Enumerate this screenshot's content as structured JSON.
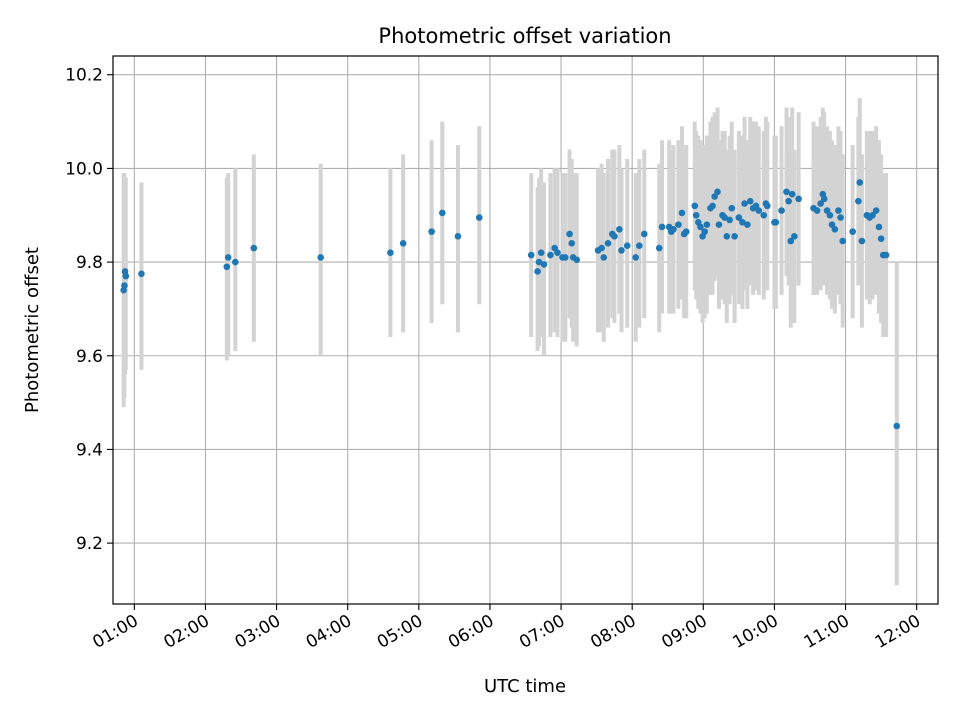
{
  "chart_data": {
    "type": "scatter",
    "title": "Photometric offset variation",
    "xlabel": "UTC time",
    "ylabel": "Photometric offset",
    "x_tick_labels": [
      "01:00",
      "02:00",
      "03:00",
      "04:00",
      "05:00",
      "06:00",
      "07:00",
      "08:00",
      "09:00",
      "10:00",
      "11:00",
      "12:00"
    ],
    "x_ticks_hours": [
      1,
      2,
      3,
      4,
      5,
      6,
      7,
      8,
      9,
      10,
      11,
      12
    ],
    "y_ticks": [
      9.2,
      9.4,
      9.6,
      9.8,
      10.0,
      10.2
    ],
    "y_tick_labels": [
      "9.2",
      "9.4",
      "9.6",
      "9.8",
      "10.0",
      "10.2"
    ],
    "xlim_hours": [
      0.7,
      12.3
    ],
    "ylim": [
      9.07,
      10.24
    ],
    "grid": true,
    "marker_color": "#1f77b4",
    "errorbar_color": "#d3d3d3",
    "series": [
      {
        "values": [
          [
            0.85,
            9.74,
            9.99,
            9.49
          ],
          [
            0.86,
            9.75,
            9.99,
            9.51
          ],
          [
            0.87,
            9.78,
            9.98,
            9.56
          ],
          [
            0.88,
            9.77,
            9.98,
            9.57
          ],
          [
            1.1,
            9.775,
            9.97,
            9.57
          ],
          [
            2.3,
            9.79,
            9.98,
            9.59
          ],
          [
            2.32,
            9.81,
            9.99,
            9.6
          ],
          [
            2.42,
            9.8,
            10.0,
            9.61
          ],
          [
            2.68,
            9.83,
            10.03,
            9.63
          ],
          [
            3.62,
            9.81,
            10.01,
            9.6
          ],
          [
            4.6,
            9.82,
            10.0,
            9.64
          ],
          [
            4.78,
            9.84,
            10.03,
            9.65
          ],
          [
            5.18,
            9.865,
            10.06,
            9.67
          ],
          [
            5.33,
            9.905,
            10.1,
            9.71
          ],
          [
            5.55,
            9.855,
            10.05,
            9.65
          ],
          [
            5.85,
            9.895,
            10.09,
            9.71
          ],
          [
            6.58,
            9.815,
            9.99,
            9.64
          ],
          [
            6.67,
            9.78,
            9.96,
            9.61
          ],
          [
            6.69,
            9.8,
            9.98,
            9.62
          ],
          [
            6.72,
            9.82,
            10.0,
            9.64
          ],
          [
            6.76,
            9.795,
            9.97,
            9.6
          ],
          [
            6.85,
            9.815,
            9.99,
            9.64
          ],
          [
            6.91,
            9.83,
            10.0,
            9.65
          ],
          [
            6.95,
            9.82,
            10.0,
            9.64
          ],
          [
            7.02,
            9.81,
            9.99,
            9.63
          ],
          [
            7.06,
            9.81,
            9.99,
            9.63
          ],
          [
            7.12,
            9.86,
            10.04,
            9.68
          ],
          [
            7.15,
            9.84,
            10.02,
            9.66
          ],
          [
            7.17,
            9.81,
            9.99,
            9.63
          ],
          [
            7.22,
            9.805,
            9.99,
            9.62
          ],
          [
            7.52,
            9.825,
            10.0,
            9.65
          ],
          [
            7.57,
            9.83,
            10.01,
            9.65
          ],
          [
            7.6,
            9.81,
            9.99,
            9.63
          ],
          [
            7.66,
            9.84,
            10.02,
            9.66
          ],
          [
            7.72,
            9.86,
            10.04,
            9.68
          ],
          [
            7.75,
            9.855,
            10.04,
            9.67
          ],
          [
            7.82,
            9.87,
            10.05,
            9.69
          ],
          [
            7.85,
            9.825,
            10.0,
            9.65
          ],
          [
            7.93,
            9.835,
            10.02,
            9.66
          ],
          [
            8.05,
            9.81,
            9.99,
            9.63
          ],
          [
            8.1,
            9.835,
            10.02,
            9.66
          ],
          [
            8.17,
            9.86,
            10.04,
            9.68
          ],
          [
            8.38,
            9.83,
            10.01,
            9.65
          ],
          [
            8.42,
            9.875,
            10.06,
            9.69
          ],
          [
            8.52,
            9.875,
            10.06,
            9.69
          ],
          [
            8.55,
            9.865,
            10.04,
            9.69
          ],
          [
            8.58,
            9.87,
            10.05,
            9.69
          ],
          [
            8.65,
            9.88,
            10.06,
            9.7
          ],
          [
            8.7,
            9.905,
            10.09,
            9.72
          ],
          [
            8.73,
            9.86,
            10.04,
            9.68
          ],
          [
            8.76,
            9.865,
            10.05,
            9.68
          ],
          [
            8.88,
            9.92,
            10.1,
            9.74
          ],
          [
            8.9,
            9.9,
            10.08,
            9.72
          ],
          [
            8.93,
            9.885,
            10.07,
            9.7
          ],
          [
            8.96,
            9.875,
            10.06,
            9.69
          ],
          [
            8.99,
            9.855,
            10.04,
            9.67
          ],
          [
            9.02,
            9.865,
            10.05,
            9.68
          ],
          [
            9.05,
            9.88,
            10.07,
            9.69
          ],
          [
            9.1,
            9.915,
            10.1,
            9.73
          ],
          [
            9.13,
            9.92,
            10.11,
            9.73
          ],
          [
            9.16,
            9.94,
            10.12,
            9.76
          ],
          [
            9.2,
            9.95,
            10.13,
            9.77
          ],
          [
            9.22,
            9.88,
            10.06,
            9.7
          ],
          [
            9.27,
            9.9,
            10.08,
            9.72
          ],
          [
            9.3,
            9.895,
            10.08,
            9.71
          ],
          [
            9.33,
            9.855,
            10.04,
            9.67
          ],
          [
            9.37,
            9.89,
            10.07,
            9.71
          ],
          [
            9.4,
            9.915,
            10.1,
            9.73
          ],
          [
            9.44,
            9.855,
            10.04,
            9.67
          ],
          [
            9.5,
            9.895,
            10.08,
            9.71
          ],
          [
            9.55,
            9.885,
            10.07,
            9.7
          ],
          [
            9.58,
            9.925,
            10.11,
            9.74
          ],
          [
            9.62,
            9.88,
            10.06,
            9.7
          ],
          [
            9.66,
            9.93,
            10.11,
            9.75
          ],
          [
            9.7,
            9.915,
            10.1,
            9.73
          ],
          [
            9.74,
            9.92,
            10.1,
            9.74
          ],
          [
            9.78,
            9.91,
            10.09,
            9.73
          ],
          [
            9.85,
            9.9,
            10.08,
            9.72
          ],
          [
            9.88,
            9.925,
            10.11,
            9.74
          ],
          [
            9.9,
            9.92,
            10.1,
            9.74
          ],
          [
            10.0,
            9.885,
            10.07,
            9.7
          ],
          [
            10.02,
            9.885,
            10.07,
            9.7
          ],
          [
            10.1,
            9.91,
            10.09,
            9.73
          ],
          [
            10.17,
            9.95,
            10.13,
            9.77
          ],
          [
            10.2,
            9.93,
            10.11,
            9.75
          ],
          [
            10.23,
            9.845,
            10.03,
            9.66
          ],
          [
            10.25,
            9.945,
            10.13,
            9.76
          ],
          [
            10.28,
            9.855,
            10.04,
            9.67
          ],
          [
            10.34,
            9.935,
            10.12,
            9.75
          ],
          [
            10.55,
            9.915,
            10.1,
            9.73
          ],
          [
            10.6,
            9.91,
            10.09,
            9.73
          ],
          [
            10.65,
            9.925,
            10.11,
            9.74
          ],
          [
            10.68,
            9.945,
            10.13,
            9.76
          ],
          [
            10.7,
            9.935,
            10.12,
            9.75
          ],
          [
            10.74,
            9.91,
            10.09,
            9.73
          ],
          [
            10.78,
            9.9,
            10.08,
            9.72
          ],
          [
            10.81,
            9.88,
            10.06,
            9.7
          ],
          [
            10.85,
            9.87,
            10.05,
            9.69
          ],
          [
            10.9,
            9.91,
            10.09,
            9.73
          ],
          [
            10.93,
            9.895,
            10.08,
            9.71
          ],
          [
            10.96,
            9.845,
            10.03,
            9.66
          ],
          [
            11.1,
            9.865,
            10.05,
            9.68
          ],
          [
            11.18,
            9.93,
            10.11,
            9.75
          ],
          [
            11.2,
            9.97,
            10.15,
            9.79
          ],
          [
            11.23,
            9.845,
            10.03,
            9.66
          ],
          [
            11.3,
            9.9,
            10.08,
            9.72
          ],
          [
            11.34,
            9.895,
            10.08,
            9.71
          ],
          [
            11.38,
            9.9,
            10.08,
            9.72
          ],
          [
            11.43,
            9.91,
            10.09,
            9.73
          ],
          [
            11.47,
            9.875,
            10.06,
            9.69
          ],
          [
            11.5,
            9.85,
            10.03,
            9.67
          ],
          [
            11.53,
            9.815,
            9.99,
            9.64
          ],
          [
            11.57,
            9.815,
            9.99,
            9.64
          ],
          [
            11.72,
            9.45,
            9.8,
            9.11
          ]
        ]
      }
    ]
  }
}
